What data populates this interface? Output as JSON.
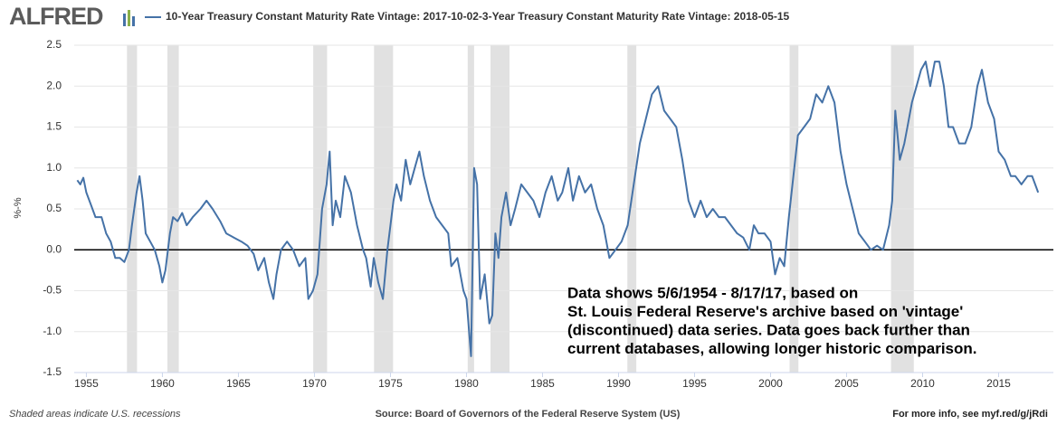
{
  "logo": "ALFRED",
  "chart_data": {
    "type": "line",
    "ylabel": "%-%",
    "annotation": [
      "Data shows 5/6/1954 - 8/17/17, based on",
      "St. Louis Federal Reserve's archive based on 'vintage'",
      "(discontinued) data series. Data goes back further than",
      "current databases, allowing longer historic comparison."
    ],
    "footer_left": "Shaded areas indicate U.S. recessions",
    "footer_center": "Source: Board of Governors of the Federal Reserve System (US)",
    "footer_right": "For more info, see myf.red/g/jRdi",
    "xlim": [
      1954.2,
      2018.6
    ],
    "xticks": [
      1955,
      1960,
      1965,
      1970,
      1975,
      1980,
      1985,
      1990,
      1995,
      2000,
      2005,
      2010,
      2015
    ],
    "ylim": [
      -1.5,
      2.5
    ],
    "yticks": [
      2.5,
      {
        "value": 2,
        "label": "2.0"
      },
      1.5,
      {
        "value": 1,
        "label": "1.0"
      },
      0.5,
      {
        "value": 0,
        "label": "0.0"
      },
      -0.5,
      {
        "value": -1,
        "label": "-1.0"
      },
      -1.5
    ],
    "grid": true,
    "recession_color": "#e1e1e1",
    "recessions": [
      [
        1957.67,
        1958.33
      ],
      [
        1960.33,
        1961.08
      ],
      [
        1969.92,
        1970.83
      ],
      [
        1973.92,
        1975.17
      ],
      [
        1980.08,
        1980.5
      ],
      [
        1981.58,
        1982.83
      ],
      [
        1990.58,
        1991.17
      ],
      [
        2001.25,
        2001.83
      ],
      [
        2007.92,
        2009.42
      ]
    ],
    "x": [
      1954.4,
      1954.6,
      1954.8,
      1955.0,
      1955.3,
      1955.6,
      1956.0,
      1956.3,
      1956.6,
      1956.9,
      1957.2,
      1957.5,
      1957.8,
      1958.0,
      1958.3,
      1958.5,
      1958.7,
      1958.9,
      1959.2,
      1959.5,
      1959.8,
      1960.0,
      1960.2,
      1960.5,
      1960.7,
      1961.0,
      1961.3,
      1961.6,
      1962.0,
      1962.5,
      1962.9,
      1963.3,
      1963.8,
      1964.2,
      1964.7,
      1965.2,
      1965.6,
      1966.0,
      1966.3,
      1966.7,
      1967.0,
      1967.3,
      1967.5,
      1967.8,
      1968.2,
      1968.6,
      1969.0,
      1969.4,
      1969.6,
      1969.9,
      1970.2,
      1970.5,
      1970.8,
      1971.0,
      1971.2,
      1971.4,
      1971.7,
      1972.0,
      1972.4,
      1972.8,
      1973.2,
      1973.4,
      1973.7,
      1973.9,
      1974.2,
      1974.5,
      1974.8,
      1975.2,
      1975.4,
      1975.7,
      1976.0,
      1976.3,
      1976.6,
      1976.9,
      1977.2,
      1977.6,
      1978.0,
      1978.4,
      1978.8,
      1979.0,
      1979.4,
      1979.8,
      1980.0,
      1980.3,
      1980.5,
      1980.7,
      1980.9,
      1981.2,
      1981.5,
      1981.7,
      1981.9,
      1982.1,
      1982.3,
      1982.6,
      1982.9,
      1983.2,
      1983.6,
      1984.0,
      1984.4,
      1984.8,
      1985.2,
      1985.6,
      1986.0,
      1986.3,
      1986.7,
      1987.0,
      1987.4,
      1987.8,
      1988.2,
      1988.6,
      1989.0,
      1989.4,
      1989.8,
      1990.2,
      1990.6,
      1991.0,
      1991.4,
      1991.8,
      1992.2,
      1992.6,
      1993.0,
      1993.4,
      1993.8,
      1994.2,
      1994.6,
      1995.0,
      1995.4,
      1995.8,
      1996.2,
      1996.6,
      1997.0,
      1997.4,
      1997.8,
      1998.2,
      1998.6,
      1998.9,
      1999.2,
      1999.6,
      2000.0,
      2000.3,
      2000.6,
      2000.9,
      2001.2,
      2001.5,
      2001.8,
      2002.2,
      2002.6,
      2003.0,
      2003.4,
      2003.8,
      2004.2,
      2004.6,
      2005.0,
      2005.4,
      2005.8,
      2006.2,
      2006.6,
      2007.0,
      2007.4,
      2007.8,
      2008.0,
      2008.2,
      2008.5,
      2008.8,
      2009.0,
      2009.3,
      2009.6,
      2009.9,
      2010.2,
      2010.5,
      2010.8,
      2011.1,
      2011.4,
      2011.7,
      2012.0,
      2012.4,
      2012.8,
      2013.2,
      2013.6,
      2013.9,
      2014.3,
      2014.7,
      2015.0,
      2015.4,
      2015.8,
      2016.1,
      2016.5,
      2016.9,
      2017.2,
      2017.6
    ],
    "series": [
      {
        "name": "10-Year Treasury Constant Maturity Rate Vintage: 2017-10-02-3-Year Treasury Constant Maturity Rate Vintage: 2018-05-15",
        "color": "#4572a7",
        "values": [
          0.85,
          0.8,
          0.88,
          0.7,
          0.55,
          0.4,
          0.4,
          0.2,
          0.1,
          -0.1,
          -0.1,
          -0.15,
          0.0,
          0.3,
          0.7,
          0.9,
          0.6,
          0.2,
          0.1,
          0.0,
          -0.2,
          -0.4,
          -0.25,
          0.2,
          0.4,
          0.35,
          0.45,
          0.3,
          0.4,
          0.5,
          0.6,
          0.5,
          0.35,
          0.2,
          0.15,
          0.1,
          0.05,
          -0.05,
          -0.25,
          -0.1,
          -0.4,
          -0.6,
          -0.3,
          0.0,
          0.1,
          0.0,
          -0.2,
          -0.1,
          -0.6,
          -0.5,
          -0.3,
          0.5,
          0.8,
          1.2,
          0.3,
          0.6,
          0.4,
          0.9,
          0.7,
          0.3,
          0.0,
          -0.1,
          -0.45,
          -0.1,
          -0.4,
          -0.6,
          0.0,
          0.6,
          0.8,
          0.6,
          1.1,
          0.8,
          1.0,
          1.2,
          0.9,
          0.6,
          0.4,
          0.3,
          0.2,
          -0.2,
          -0.1,
          -0.5,
          -0.6,
          -1.3,
          1.0,
          0.8,
          -0.6,
          -0.3,
          -0.9,
          -0.8,
          0.2,
          -0.1,
          0.4,
          0.7,
          0.3,
          0.5,
          0.8,
          0.7,
          0.6,
          0.4,
          0.7,
          0.9,
          0.6,
          0.7,
          1.0,
          0.6,
          0.9,
          0.7,
          0.8,
          0.5,
          0.3,
          -0.1,
          0.0,
          0.1,
          0.3,
          0.8,
          1.3,
          1.6,
          1.9,
          2.0,
          1.7,
          1.6,
          1.5,
          1.1,
          0.6,
          0.4,
          0.6,
          0.4,
          0.5,
          0.4,
          0.4,
          0.3,
          0.2,
          0.15,
          0.0,
          0.3,
          0.2,
          0.2,
          0.1,
          -0.3,
          -0.1,
          -0.2,
          0.4,
          0.9,
          1.4,
          1.5,
          1.6,
          1.9,
          1.8,
          2.0,
          1.8,
          1.2,
          0.8,
          0.5,
          0.2,
          0.1,
          0.0,
          0.05,
          0.0,
          0.3,
          0.6,
          1.7,
          1.1,
          1.3,
          1.5,
          1.8,
          2.0,
          2.2,
          2.3,
          2.0,
          2.3,
          2.3,
          2.0,
          1.5,
          1.5,
          1.3,
          1.3,
          1.5,
          2.0,
          2.2,
          1.8,
          1.6,
          1.2,
          1.1,
          0.9,
          0.9,
          0.8,
          0.9,
          0.9,
          0.7
        ]
      }
    ]
  }
}
